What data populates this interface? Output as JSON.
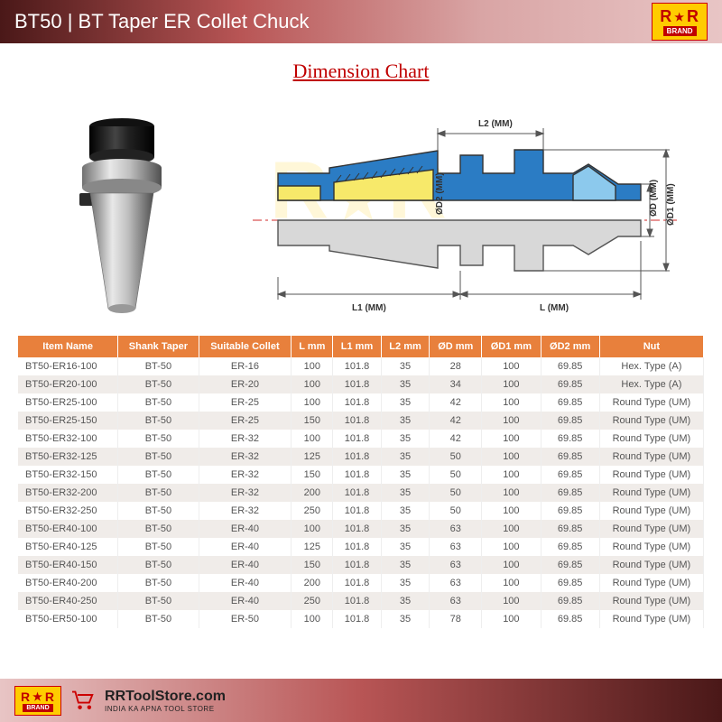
{
  "header": {
    "title": "BT50 | BT Taper ER Collet Chuck",
    "brand_letters": "R★R",
    "brand_word": "BRAND"
  },
  "chart_title": "Dimension Chart",
  "schematic": {
    "labels": {
      "L2": "L2 (MM)",
      "L1": "L1 (MM)",
      "L": "L (MM)",
      "D2": "ØD2 (MM)",
      "D": "ØD (MM)",
      "D1": "ØD1 (MM)"
    },
    "colors": {
      "body_top": "#2b7cc4",
      "body_fill": "#f7e96a",
      "collet_fill": "#5aa8de",
      "outline": "#333333",
      "centerline": "#d02828",
      "dimension_line": "#555555"
    }
  },
  "photo": {
    "colors": {
      "metal_light": "#d8d8d8",
      "metal_mid": "#a8a8a8",
      "metal_dark": "#606060",
      "collet_dark": "#1a1a1a"
    }
  },
  "watermark": "R★R",
  "table": {
    "header_bg": "#e8803c",
    "header_color": "#ffffff",
    "row_alt_bg": "#f0ece9",
    "columns": [
      "Item Name",
      "Shank Taper",
      "Suitable Collet",
      "L mm",
      "L1 mm",
      "L2 mm",
      "ØD mm",
      "ØD1 mm",
      "ØD2 mm",
      "Nut"
    ],
    "rows": [
      [
        "BT50-ER16-100",
        "BT-50",
        "ER-16",
        "100",
        "101.8",
        "35",
        "28",
        "100",
        "69.85",
        "Hex. Type (A)"
      ],
      [
        "BT50-ER20-100",
        "BT-50",
        "ER-20",
        "100",
        "101.8",
        "35",
        "34",
        "100",
        "69.85",
        "Hex. Type (A)"
      ],
      [
        "BT50-ER25-100",
        "BT-50",
        "ER-25",
        "100",
        "101.8",
        "35",
        "42",
        "100",
        "69.85",
        "Round Type (UM)"
      ],
      [
        "BT50-ER25-150",
        "BT-50",
        "ER-25",
        "150",
        "101.8",
        "35",
        "42",
        "100",
        "69.85",
        "Round Type (UM)"
      ],
      [
        "BT50-ER32-100",
        "BT-50",
        "ER-32",
        "100",
        "101.8",
        "35",
        "42",
        "100",
        "69.85",
        "Round Type (UM)"
      ],
      [
        "BT50-ER32-125",
        "BT-50",
        "ER-32",
        "125",
        "101.8",
        "35",
        "50",
        "100",
        "69.85",
        "Round Type (UM)"
      ],
      [
        "BT50-ER32-150",
        "BT-50",
        "ER-32",
        "150",
        "101.8",
        "35",
        "50",
        "100",
        "69.85",
        "Round Type (UM)"
      ],
      [
        "BT50-ER32-200",
        "BT-50",
        "ER-32",
        "200",
        "101.8",
        "35",
        "50",
        "100",
        "69.85",
        "Round Type (UM)"
      ],
      [
        "BT50-ER32-250",
        "BT-50",
        "ER-32",
        "250",
        "101.8",
        "35",
        "50",
        "100",
        "69.85",
        "Round Type (UM)"
      ],
      [
        "BT50-ER40-100",
        "BT-50",
        "ER-40",
        "100",
        "101.8",
        "35",
        "63",
        "100",
        "69.85",
        "Round Type (UM)"
      ],
      [
        "BT50-ER40-125",
        "BT-50",
        "ER-40",
        "125",
        "101.8",
        "35",
        "63",
        "100",
        "69.85",
        "Round Type (UM)"
      ],
      [
        "BT50-ER40-150",
        "BT-50",
        "ER-40",
        "150",
        "101.8",
        "35",
        "63",
        "100",
        "69.85",
        "Round Type (UM)"
      ],
      [
        "BT50-ER40-200",
        "BT-50",
        "ER-40",
        "200",
        "101.8",
        "35",
        "63",
        "100",
        "69.85",
        "Round Type (UM)"
      ],
      [
        "BT50-ER40-250",
        "BT-50",
        "ER-40",
        "250",
        "101.8",
        "35",
        "63",
        "100",
        "69.85",
        "Round Type (UM)"
      ],
      [
        "BT50-ER50-100",
        "BT-50",
        "ER-50",
        "100",
        "101.8",
        "35",
        "78",
        "100",
        "69.85",
        "Round Type (UM)"
      ]
    ]
  },
  "footer": {
    "url": "RRToolStore.com",
    "tagline": "INDIA KA APNA TOOL STORE"
  }
}
